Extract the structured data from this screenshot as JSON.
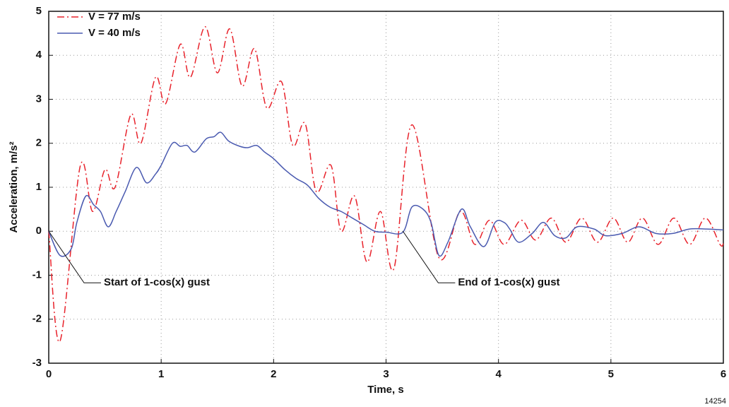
{
  "chart_data": {
    "type": "line",
    "xlabel": "Time, s",
    "ylabel": "Acceleration, m/s²",
    "xlim": [
      0,
      6
    ],
    "xticks": [
      0,
      1,
      2,
      3,
      4,
      5,
      6
    ],
    "ylim": [
      -3,
      5
    ],
    "yticks": [
      -3,
      -2,
      -1,
      0,
      1,
      2,
      3,
      4,
      5
    ],
    "grid": true,
    "legend": "upper left",
    "series": [
      {
        "name": "V = 77 m/s",
        "color": "#e8222b",
        "dash": "dashdot",
        "x": [
          0,
          0.1,
          0.28,
          0.39,
          0.5,
          0.59,
          0.73,
          0.82,
          0.95,
          1.04,
          1.17,
          1.26,
          1.39,
          1.5,
          1.61,
          1.72,
          1.83,
          1.94,
          2.07,
          2.17,
          2.28,
          2.38,
          2.51,
          2.6,
          2.72,
          2.83,
          2.95,
          3.07,
          3.23,
          3.47,
          3.66,
          3.79,
          3.92,
          4.05,
          4.2,
          4.33,
          4.47,
          4.6,
          4.74,
          4.88,
          5.02,
          5.15,
          5.28,
          5.42,
          5.56,
          5.7,
          5.84,
          5.97,
          6.0
        ],
        "values": [
          0,
          -2.5,
          1.48,
          0.45,
          1.4,
          1.0,
          2.65,
          2.0,
          3.5,
          2.9,
          4.25,
          3.5,
          4.65,
          3.6,
          4.6,
          3.3,
          4.15,
          2.8,
          3.4,
          1.95,
          2.45,
          0.9,
          1.5,
          0.0,
          0.8,
          -0.7,
          0.45,
          -0.85,
          2.42,
          -0.6,
          0.45,
          -0.3,
          0.25,
          -0.3,
          0.25,
          -0.2,
          0.3,
          -0.25,
          0.3,
          -0.25,
          0.3,
          -0.25,
          0.3,
          -0.3,
          0.3,
          -0.3,
          0.3,
          -0.3,
          -0.28
        ]
      },
      {
        "name": "V = 40 m/s",
        "color": "#4a5ab0",
        "dash": "solid",
        "x": [
          0,
          0.1,
          0.2,
          0.25,
          0.33,
          0.4,
          0.46,
          0.53,
          0.6,
          0.68,
          0.78,
          0.87,
          0.95,
          1.0,
          1.1,
          1.17,
          1.23,
          1.3,
          1.4,
          1.47,
          1.53,
          1.6,
          1.7,
          1.77,
          1.85,
          1.92,
          2.0,
          2.1,
          2.2,
          2.3,
          2.4,
          2.5,
          2.6,
          2.7,
          2.8,
          2.9,
          3.0,
          3.15,
          3.23,
          3.33,
          3.4,
          3.47,
          3.55,
          3.67,
          3.75,
          3.87,
          3.97,
          4.05,
          4.1,
          4.18,
          4.3,
          4.4,
          4.5,
          4.6,
          4.7,
          4.85,
          4.95,
          5.1,
          5.25,
          5.4,
          5.55,
          5.7,
          5.85,
          6.0
        ],
        "values": [
          0,
          -0.55,
          -0.4,
          0.2,
          0.8,
          0.6,
          0.45,
          0.1,
          0.45,
          0.9,
          1.45,
          1.1,
          1.3,
          1.5,
          2.0,
          1.93,
          1.95,
          1.8,
          2.1,
          2.15,
          2.25,
          2.05,
          1.93,
          1.9,
          1.95,
          1.8,
          1.65,
          1.4,
          1.2,
          1.05,
          0.75,
          0.55,
          0.45,
          0.3,
          0.15,
          0,
          -0.02,
          -0.02,
          0.55,
          0.5,
          0.2,
          -0.55,
          -0.25,
          0.5,
          0.1,
          -0.35,
          0.2,
          0.2,
          0.05,
          -0.25,
          -0.05,
          0.2,
          -0.1,
          -0.15,
          0.1,
          0.05,
          -0.1,
          -0.05,
          0.1,
          -0.05,
          -0.05,
          0.05,
          0.05,
          0.03
        ]
      }
    ],
    "annotations": [
      {
        "text": "Start of 1-cos(x) gust",
        "x": 0,
        "y": 0
      },
      {
        "text": "End of 1-cos(x) gust",
        "x": 3.15,
        "y": 0
      }
    ],
    "note": "14254"
  }
}
